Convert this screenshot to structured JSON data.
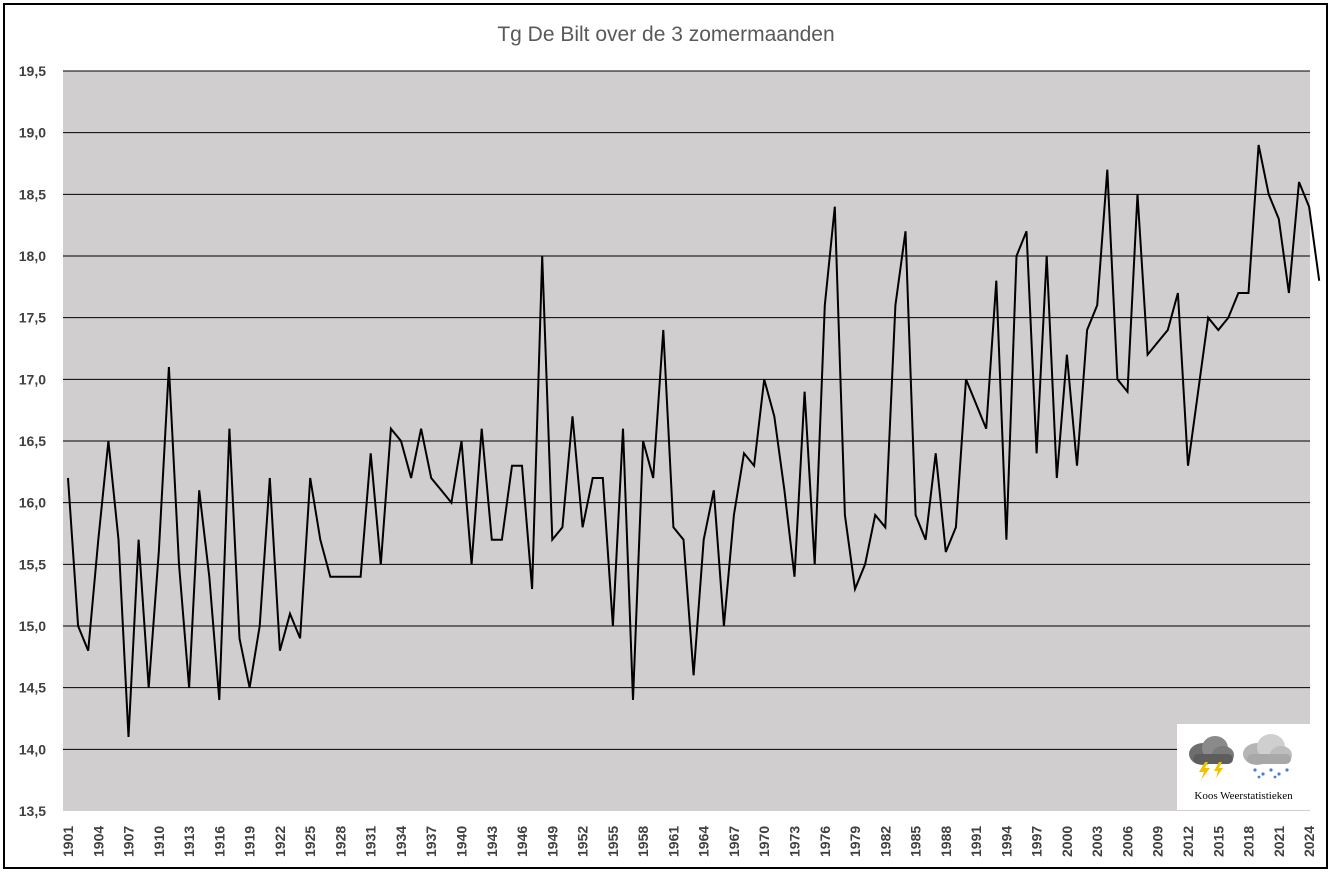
{
  "chart_data": {
    "type": "line",
    "title": "Tg De Bilt over de 3 zomermaanden",
    "xlabel": "",
    "ylabel": "",
    "ylim": [
      13.5,
      19.5
    ],
    "yticks": [
      "13,5",
      "14,0",
      "14,5",
      "15,0",
      "15,5",
      "16,0",
      "16,5",
      "17,0",
      "17,5",
      "18,0",
      "18,5",
      "19,0",
      "19,5"
    ],
    "xtick_labels": [
      "1901",
      "1904",
      "1907",
      "1910",
      "1913",
      "1916",
      "1919",
      "1922",
      "1925",
      "1928",
      "1931",
      "1934",
      "1937",
      "1940",
      "1943",
      "1946",
      "1949",
      "1952",
      "1955",
      "1958",
      "1961",
      "1964",
      "1967",
      "1970",
      "1973",
      "1976",
      "1979",
      "1982",
      "1985",
      "1988",
      "1991",
      "1994",
      "1997",
      "2000",
      "2003",
      "2006",
      "2009",
      "2012",
      "2015",
      "2018",
      "2021",
      "2024"
    ],
    "x_start": 1901,
    "x_end": 2024,
    "grid": true,
    "colors": {
      "plot_bg": "#d0cecf",
      "line": "#000000",
      "grid": "#000000",
      "title": "#595959",
      "ticks": "#404040"
    },
    "series": [
      {
        "values": [
          16.2,
          15.0,
          14.8,
          15.7,
          16.5,
          15.7,
          14.1,
          15.7,
          14.5,
          15.6,
          17.1,
          15.5,
          14.5,
          16.1,
          15.4,
          14.4,
          16.6,
          14.9,
          14.5,
          15.0,
          16.2,
          14.8,
          15.1,
          14.9,
          16.2,
          15.7,
          15.4,
          15.4,
          15.4,
          15.4,
          16.4,
          15.5,
          16.6,
          16.5,
          16.2,
          16.6,
          16.2,
          16.1,
          16.0,
          16.5,
          15.5,
          16.6,
          15.7,
          15.7,
          16.3,
          16.3,
          15.3,
          18.0,
          15.7,
          15.8,
          16.7,
          15.8,
          16.2,
          16.2,
          15.0,
          16.6,
          14.4,
          16.5,
          16.2,
          17.4,
          15.8,
          15.7,
          14.6,
          15.7,
          16.1,
          15.0,
          15.9,
          16.4,
          16.3,
          17.0,
          16.7,
          16.1,
          15.4,
          16.9,
          15.5,
          17.6,
          18.4,
          15.9,
          15.3,
          15.5,
          15.9,
          15.8,
          17.6,
          18.2,
          15.9,
          15.7,
          16.4,
          15.6,
          15.8,
          17.0,
          16.8,
          16.6,
          17.8,
          15.7,
          18.0,
          18.2,
          16.4,
          18.0,
          16.2,
          17.2,
          16.3,
          17.4,
          17.6,
          18.7,
          17.0,
          16.9,
          18.5,
          17.2,
          17.3,
          17.4,
          17.7,
          16.3,
          16.9,
          17.5,
          17.4,
          17.5,
          17.7,
          17.7,
          18.9,
          18.5,
          18.3,
          17.7,
          18.6,
          18.4,
          17.8
        ]
      }
    ]
  },
  "logo": {
    "text": "Koos Weerstatistieken",
    "icons": [
      "thunderstorm-cloud-icon",
      "snow-cloud-icon"
    ]
  }
}
